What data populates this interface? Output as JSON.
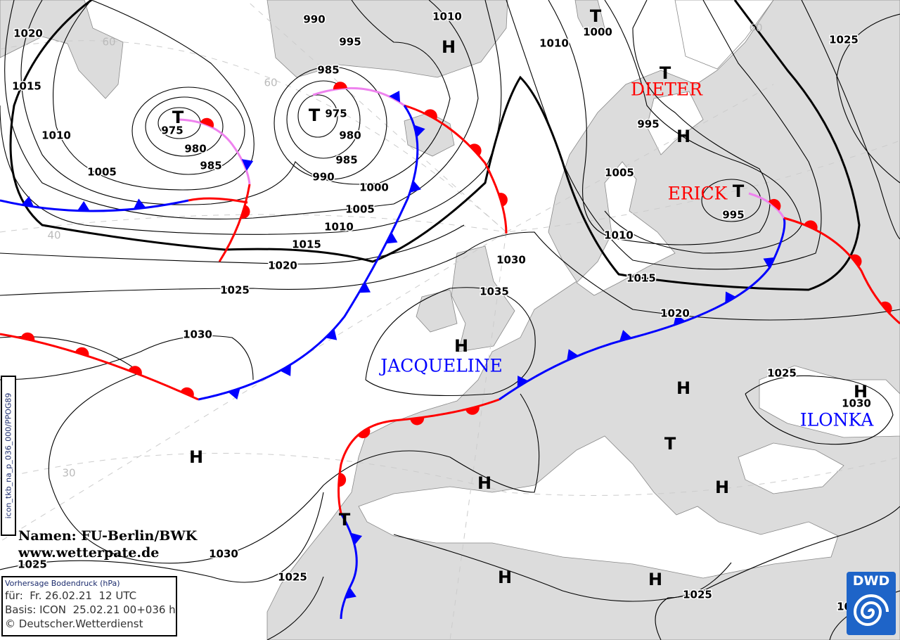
{
  "map": {
    "land_color": "#dcdcdc",
    "sea_color": "#ffffff",
    "isobar_labels": [
      "1020",
      "1015",
      "1010",
      "1005",
      "975",
      "980",
      "985",
      "990",
      "995",
      "985",
      "975",
      "980",
      "985",
      "990",
      "1000",
      "1005",
      "1010",
      "1015",
      "1020",
      "1025",
      "1030",
      "1010",
      "1010",
      "1000",
      "995",
      "1005",
      "1010",
      "1015",
      "1020",
      "995",
      "1025",
      "1030",
      "1035",
      "1025",
      "1030",
      "1025",
      "1030",
      "1025",
      "1025",
      "1020"
    ],
    "pressure_centers": [
      "T",
      "T",
      "H",
      "T",
      "T",
      "H",
      "T",
      "H",
      "H",
      "T",
      "H",
      "H",
      "H",
      "H",
      "T",
      "H",
      "H"
    ],
    "grid_labels": [
      "60",
      "60",
      "40",
      "30",
      "60"
    ],
    "system_names": [
      {
        "name": "DIETER",
        "color": "#ff0000"
      },
      {
        "name": "ERICK",
        "color": "#ff0000"
      },
      {
        "name": "JACQUELINE",
        "color": "#0000ff"
      },
      {
        "name": "ILONKA",
        "color": "#0000ff"
      }
    ],
    "front_colors": {
      "warm": "#ff0000",
      "cold": "#0000ff",
      "occlusion": "#ee82ee"
    }
  },
  "credit": {
    "line1": "Namen: FU-Berlin/BWK",
    "line2": "www.wetterpate.de"
  },
  "infobox": {
    "title": "Vorhersage Bodendruck (hPa)",
    "valid": "für:  Fr. 26.02.21  12 UTC",
    "basis": "Basis: ICON  25.02.21 00+036 h",
    "copyright": "© Deutscher.Wetterdienst"
  },
  "side_code": "icon_tkb_na_p_036_000/PPOG89",
  "logo": {
    "text": "DWD",
    "color": "#1e64c8"
  }
}
